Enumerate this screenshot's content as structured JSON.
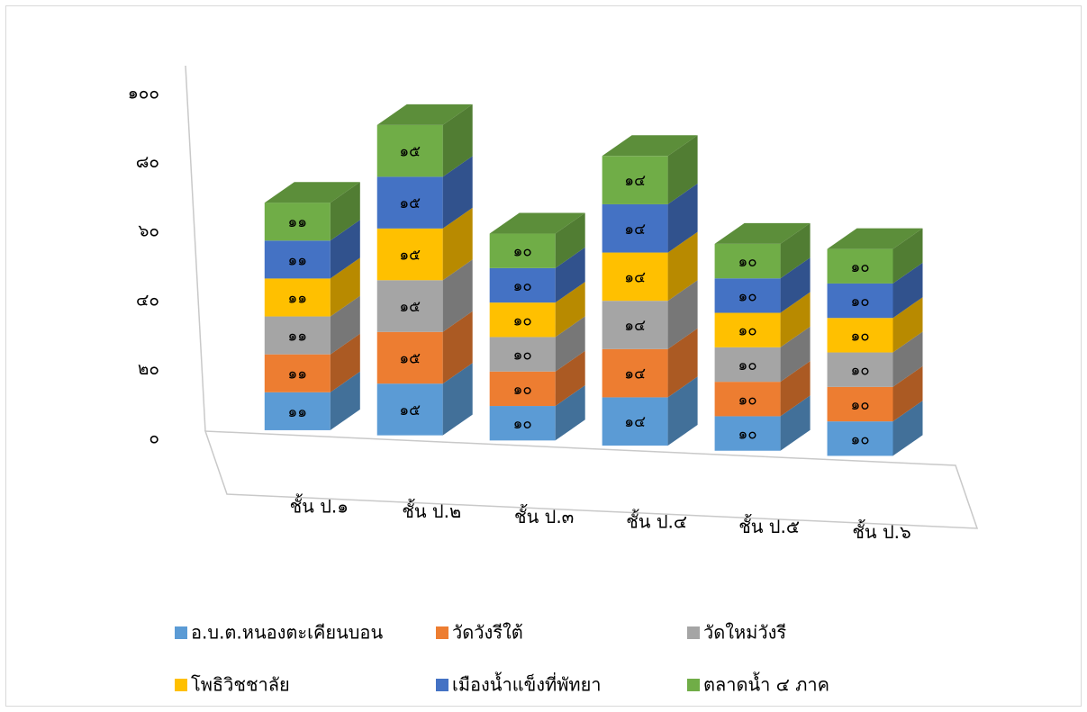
{
  "chart_data": {
    "type": "bar",
    "stacked": true,
    "three_d": true,
    "title": "",
    "xlabel": "",
    "ylabel": "",
    "ylim": [
      0,
      100
    ],
    "yticks": [
      0,
      20,
      40,
      60,
      80,
      100
    ],
    "ytick_labels": [
      "๐",
      "๒๐",
      "๔๐",
      "๖๐",
      "๘๐",
      "๑๐๐"
    ],
    "grid": false,
    "legend_position": "bottom",
    "categories": [
      "ชั้น ป.๑",
      "ชั้น ป.๒",
      "ชั้น ป.๓",
      "ชั้น ป.๔",
      "ชั้น ป.๕",
      "ชั้น ป.๖"
    ],
    "series": [
      {
        "name": "อ.บ.ต.หนองตะเคียนบอน",
        "color": "#5b9bd5",
        "values": [
          11,
          15,
          10,
          14,
          10,
          10
        ],
        "labels": [
          "๑๑",
          "๑๕",
          "๑๐",
          "๑๔",
          "๑๐",
          "๑๐"
        ]
      },
      {
        "name": "วัดวังรีใต้",
        "color": "#ed7d31",
        "values": [
          11,
          15,
          10,
          14,
          10,
          10
        ],
        "labels": [
          "๑๑",
          "๑๕",
          "๑๐",
          "๑๔",
          "๑๐",
          "๑๐"
        ]
      },
      {
        "name": "วัดใหม่วังรี",
        "color": "#a5a5a5",
        "values": [
          11,
          15,
          10,
          14,
          10,
          10
        ],
        "labels": [
          "๑๑",
          "๑๕",
          "๑๐",
          "๑๔",
          "๑๐",
          "๑๐"
        ]
      },
      {
        "name": "โพธิวิชชาลัย",
        "color": "#ffc000",
        "values": [
          11,
          15,
          10,
          14,
          10,
          10
        ],
        "labels": [
          "๑๑",
          "๑๕",
          "๑๐",
          "๑๔",
          "๑๐",
          "๑๐"
        ]
      },
      {
        "name": "เมืองน้ำแข็งที่พัทยา",
        "color": "#4472c4",
        "values": [
          11,
          15,
          10,
          14,
          10,
          10
        ],
        "labels": [
          "๑๑",
          "๑๕",
          "๑๐",
          "๑๔",
          "๑๐",
          "๑๐"
        ]
      },
      {
        "name": "ตลาดน้ำ ๔ ภาค",
        "color": "#70ad47",
        "values": [
          11,
          15,
          10,
          14,
          10,
          10
        ],
        "labels": [
          "๑๑",
          "๑๕",
          "๑๐",
          "๑๔",
          "๑๐",
          "๑๐"
        ]
      }
    ]
  }
}
